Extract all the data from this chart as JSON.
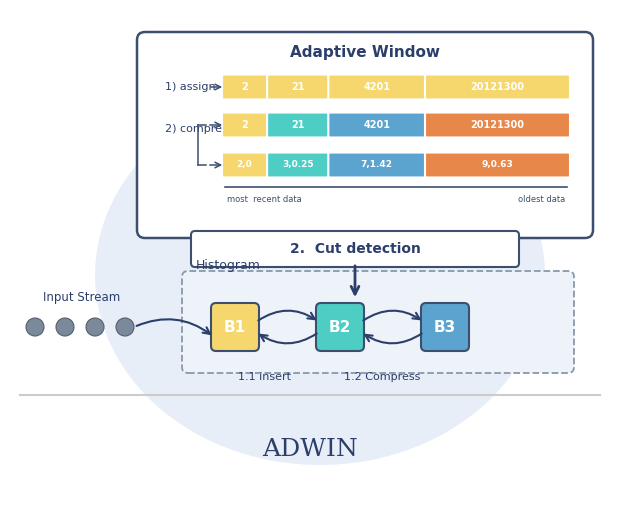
{
  "title": "ADWIN",
  "bg_color": "#ffffff",
  "light_blue_blob_color": "#dde8f5",
  "adaptive_window_title": "Adaptive Window",
  "row1_label": "1) assign",
  "row2_label": "2) compress",
  "row1_values": [
    "2",
    "21",
    "4201",
    "20121300"
  ],
  "row2_values": [
    "2",
    "21",
    "4201",
    "20121300"
  ],
  "row3_values": [
    "2,0",
    "3,0.25",
    "7,1.42",
    "9,0.63"
  ],
  "cell_colors_row1": [
    "#f5d76e",
    "#f5d76e",
    "#f5d76e",
    "#f5d76e"
  ],
  "cell_colors_row2": [
    "#f5d76e",
    "#4ecdc4",
    "#5ba4cf",
    "#e8874a"
  ],
  "cell_colors_row3": [
    "#f5d76e",
    "#4ecdc4",
    "#5ba4cf",
    "#e8874a"
  ],
  "axis_label_left": "most  recent data",
  "axis_label_right": "oldest data",
  "cut_detection_text": "2.  Cut detection",
  "histogram_label": "Histogram",
  "bucket_labels": [
    "B1",
    "B2",
    "B3"
  ],
  "bucket_colors": [
    "#f5d76e",
    "#4ecdc4",
    "#5ba4cf"
  ],
  "input_stream_label": "Input Stream",
  "insert_label": "1.1 insert",
  "compress_label": "1.2 Compress",
  "dot_color": "#7a8a9a",
  "box_border_color": "#3d4f6e",
  "dashed_border_color": "#8899aa"
}
